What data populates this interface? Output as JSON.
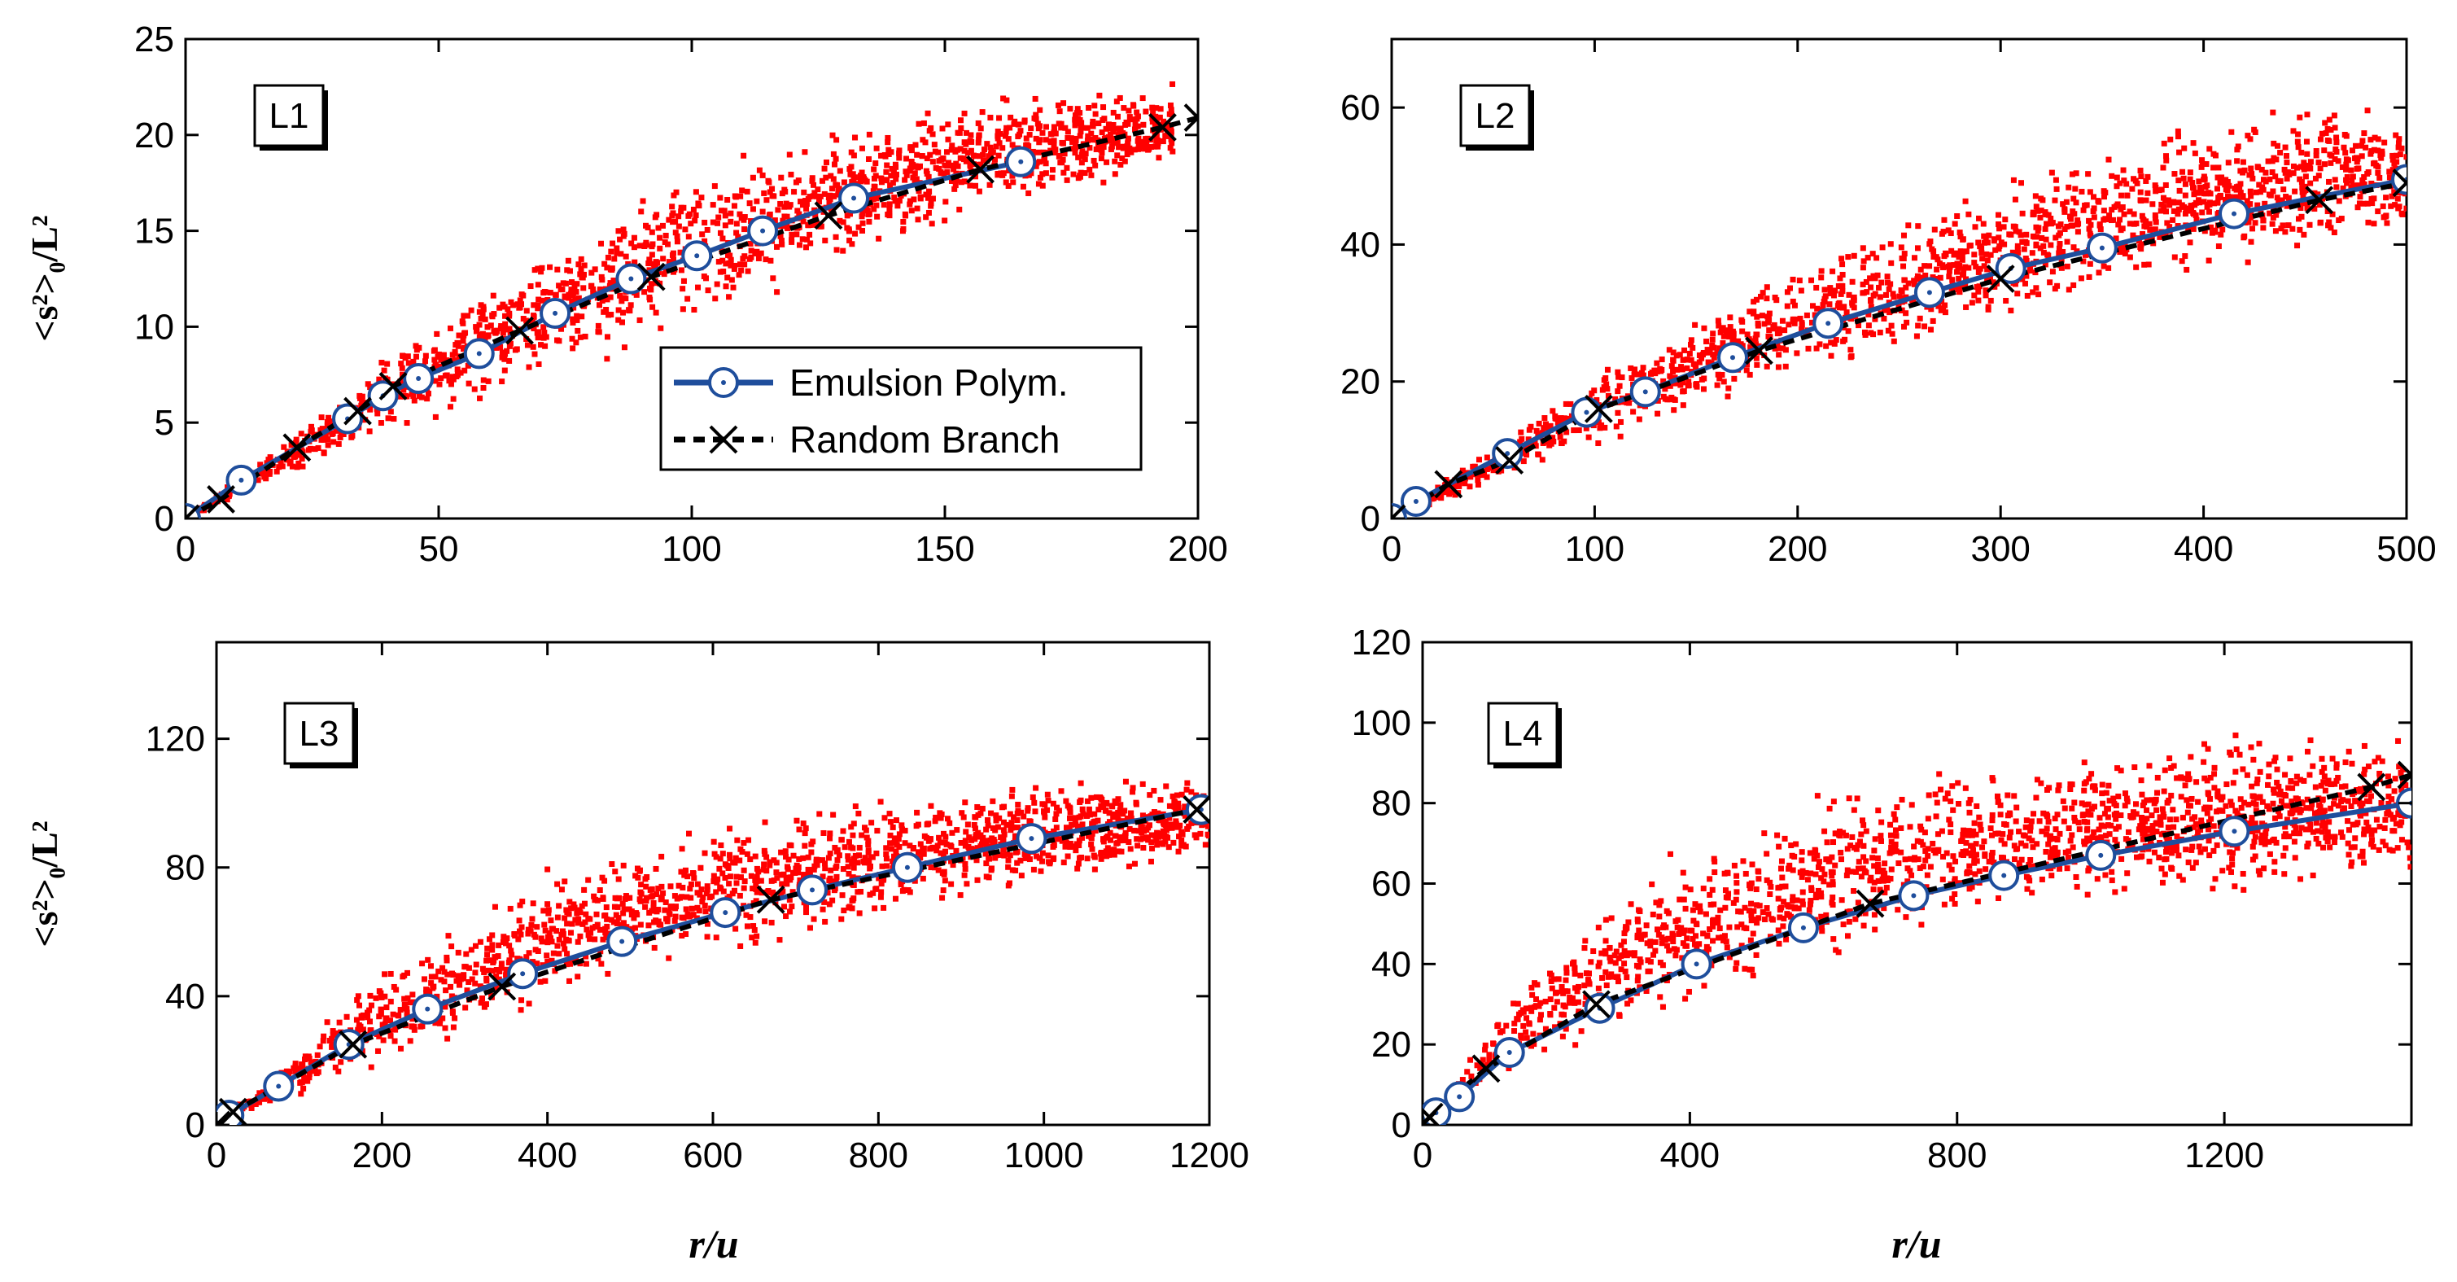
{
  "figure": {
    "ylabel": "<s²>₀/L²",
    "xlabel": "r/u"
  },
  "legend": {
    "emulsion": "Emulsion Polym.",
    "random": "Random Branch"
  },
  "colors": {
    "emulsion": "#1f4e9c",
    "random": "#000000",
    "scatter": "#ff0000"
  },
  "chart_data": [
    {
      "type": "scatter",
      "panel": "L1",
      "title": "L1",
      "xlabel": "",
      "ylabel": "<s²>₀/L²",
      "xlim": [
        0,
        200
      ],
      "ylim": [
        0,
        25
      ],
      "xticks": [
        0,
        50,
        100,
        150,
        200
      ],
      "yticks": [
        0,
        5,
        10,
        15,
        20,
        25
      ],
      "scatter_band": {
        "x": [
          0,
          50,
          100,
          150,
          195
        ],
        "y_low": [
          0,
          5.0,
          9.5,
          15.0,
          18.0
        ],
        "y_high": [
          0,
          11.0,
          19.0,
          22.0,
          23.0
        ],
        "points": 1600
      },
      "series": [
        {
          "name": "Emulsion Polym.",
          "x": [
            0,
            11,
            32,
            39,
            46,
            58,
            73,
            88,
            101,
            114,
            132,
            165
          ],
          "y": [
            0,
            2.0,
            5.2,
            6.4,
            7.3,
            8.6,
            10.7,
            12.5,
            13.7,
            15.0,
            16.7,
            18.6
          ]
        },
        {
          "name": "Random Branch",
          "x": [
            0,
            7,
            22,
            34,
            41,
            66,
            92,
            127,
            157,
            193,
            200
          ],
          "y": [
            0,
            1.0,
            3.7,
            5.6,
            6.9,
            9.8,
            12.6,
            15.8,
            18.2,
            20.4,
            20.9
          ]
        }
      ]
    },
    {
      "type": "scatter",
      "panel": "L2",
      "title": "L2",
      "xlabel": "",
      "ylabel": "",
      "xlim": [
        0,
        500
      ],
      "ylim": [
        0,
        70
      ],
      "xticks": [
        0,
        100,
        200,
        300,
        400,
        500
      ],
      "yticks": [
        0,
        20,
        40,
        60
      ],
      "scatter_band": {
        "x": [
          0,
          100,
          200,
          300,
          400,
          500
        ],
        "y_low": [
          0,
          10.0,
          20.0,
          28.0,
          34.0,
          40.0
        ],
        "y_high": [
          0,
          22.0,
          38.0,
          50.0,
          60.0,
          62.0
        ],
        "points": 1600
      },
      "series": [
        {
          "name": "Emulsion Polym.",
          "x": [
            0,
            12,
            57,
            96,
            125,
            168,
            215,
            265,
            305,
            350,
            415,
            500
          ],
          "y": [
            0,
            2.5,
            9.5,
            15.5,
            18.5,
            23.5,
            28.5,
            33.0,
            36.5,
            39.5,
            44.5,
            49.5
          ]
        },
        {
          "name": "Random Branch",
          "x": [
            0,
            28,
            58,
            102,
            181,
            300,
            457,
            500
          ],
          "y": [
            0,
            5.0,
            8.5,
            16.0,
            24.5,
            35.0,
            46.5,
            49.0
          ]
        }
      ]
    },
    {
      "type": "scatter",
      "panel": "L3",
      "title": "L3",
      "xlabel": "r/u",
      "ylabel": "<s²>₀/L²",
      "xlim": [
        0,
        1200
      ],
      "ylim": [
        0,
        150
      ],
      "xticks": [
        0,
        200,
        400,
        600,
        800,
        1000,
        1200
      ],
      "yticks": [
        0,
        40,
        80,
        120
      ],
      "scatter_band": {
        "x": [
          0,
          200,
          400,
          600,
          800,
          1000,
          1200
        ],
        "y_low": [
          0,
          15.0,
          35.0,
          50.0,
          62.0,
          72.0,
          80.0
        ],
        "y_high": [
          0,
          50.0,
          82.0,
          95.0,
          105.0,
          110.0,
          110.0
        ],
        "points": 1600
      },
      "series": [
        {
          "name": "Emulsion Polym.",
          "x": [
            0,
            15,
            75,
            160,
            255,
            370,
            490,
            615,
            720,
            835,
            985,
            1190
          ],
          "y": [
            0,
            3,
            12,
            25,
            36,
            47,
            57,
            66,
            73,
            80,
            89,
            98
          ]
        },
        {
          "name": "Random Branch",
          "x": [
            0,
            20,
            165,
            345,
            670,
            1185
          ],
          "y": [
            0,
            4,
            25,
            43,
            70,
            98
          ]
        }
      ]
    },
    {
      "type": "scatter",
      "panel": "L4",
      "title": "L4",
      "xlabel": "r/u",
      "ylabel": "",
      "xlim": [
        0,
        1480
      ],
      "ylim": [
        0,
        120
      ],
      "xticks": [
        0,
        400,
        800,
        1200
      ],
      "yticks": [
        0,
        20,
        40,
        60,
        80,
        100,
        120
      ],
      "scatter_band": {
        "x": [
          0,
          200,
          400,
          600,
          800,
          1000,
          1200,
          1480
        ],
        "y_low": [
          0,
          15.0,
          27.0,
          38.0,
          46.0,
          52.0,
          55.0,
          58.0
        ],
        "y_high": [
          0,
          50.0,
          72.0,
          85.0,
          92.0,
          95.0,
          98.0,
          100.0
        ],
        "points": 1600
      },
      "series": [
        {
          "name": "Emulsion Polym.",
          "x": [
            0,
            20,
            55,
            130,
            265,
            410,
            570,
            735,
            870,
            1015,
            1215,
            1480
          ],
          "y": [
            0,
            3,
            7,
            18,
            29,
            40,
            49,
            57,
            62,
            67,
            73,
            80
          ]
        },
        {
          "name": "Random Branch",
          "x": [
            0,
            10,
            95,
            260,
            670,
            1420,
            1480
          ],
          "y": [
            0,
            2,
            14,
            30,
            55,
            84,
            87
          ]
        }
      ]
    }
  ]
}
